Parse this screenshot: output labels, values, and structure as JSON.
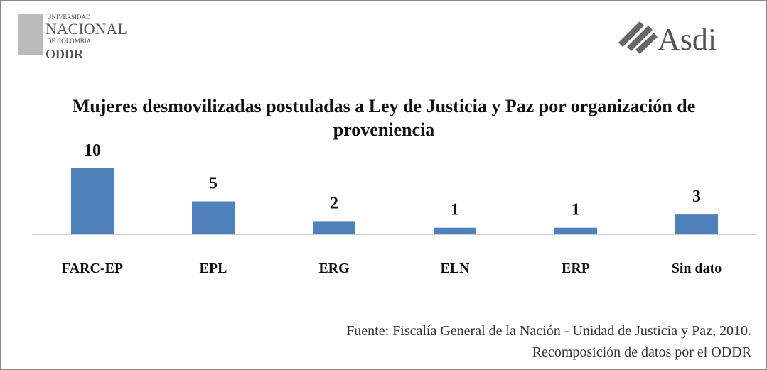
{
  "chart_data": {
    "type": "bar",
    "title": "Mujeres desmovilizadas postuladas a Ley de Justicia y Paz por organización de proveniencia",
    "categories": [
      "FARC-EP",
      "EPL",
      "ERG",
      "ELN",
      "ERP",
      "Sin dato"
    ],
    "values": [
      10,
      5,
      2,
      1,
      1,
      3
    ],
    "color": "#4f81bd",
    "source": [
      "Fuente: Fiscalía General de la Nación - Unidad de Justicia y Paz, 2010.",
      "Recomposición de datos por el ODDR"
    ]
  },
  "logos": {
    "left": [
      "UNIVERSIDAD",
      "NACIONAL",
      "DE COLOMBIA",
      "ODDR"
    ],
    "right": "Asdi"
  }
}
